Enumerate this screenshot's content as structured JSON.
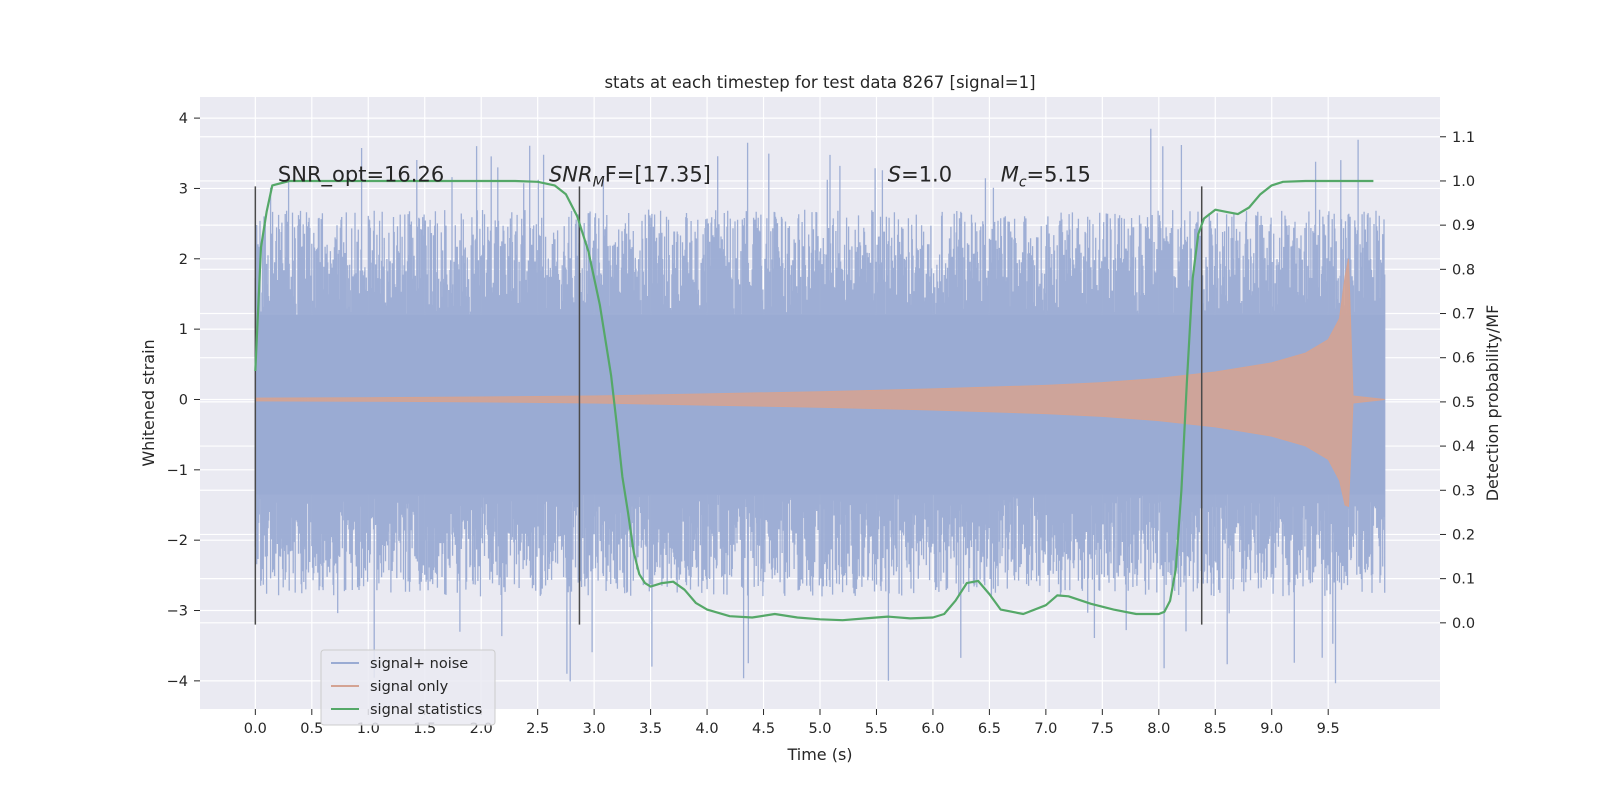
{
  "chart_data": {
    "type": "line",
    "title": "stats at each timestep for test data 8267 [signal=1]",
    "xlabel": "Time (s)",
    "ylabel_left": "Whitened strain",
    "ylabel_right": "Detection probability/MF",
    "xlim": [
      -0.49,
      10.49
    ],
    "ylim_left": [
      -4.4,
      4.3
    ],
    "ylim_right": [
      -0.195,
      1.19
    ],
    "x_ticks": [
      0.0,
      0.5,
      1.0,
      1.5,
      2.0,
      2.5,
      3.0,
      3.5,
      4.0,
      4.5,
      5.0,
      5.5,
      6.0,
      6.5,
      7.0,
      7.5,
      8.0,
      8.5,
      9.0,
      9.5
    ],
    "x_tick_labels": [
      "0.0",
      "0.5",
      "1.0",
      "1.5",
      "2.0",
      "2.5",
      "3.0",
      "3.5",
      "4.0",
      "4.5",
      "5.0",
      "5.5",
      "6.0",
      "6.5",
      "7.0",
      "7.5",
      "8.0",
      "8.5",
      "9.0",
      "9.5"
    ],
    "left_ticks": [
      -4,
      -3,
      -2,
      -1,
      0,
      1,
      2,
      3,
      4
    ],
    "left_tick_labels": [
      "−4",
      "−3",
      "−2",
      "−1",
      "0",
      "1",
      "2",
      "3",
      "4"
    ],
    "right_ticks": [
      0.0,
      0.1,
      0.2,
      0.3,
      0.4,
      0.5,
      0.6,
      0.7,
      0.8,
      0.9,
      1.0,
      1.1
    ],
    "right_tick_labels": [
      "0.0",
      "0.1",
      "0.2",
      "0.3",
      "0.4",
      "0.5",
      "0.6",
      "0.7",
      "0.8",
      "0.9",
      "1.0",
      "1.1"
    ],
    "grid": true,
    "legend_position": "lower-left",
    "series": [
      {
        "name": "signal+ noise",
        "color": "#9aabd3",
        "axis": "left",
        "description_values": {
          "x_range": [
            0.0,
            10.0
          ],
          "typical_band": [
            -1.35,
            1.2
          ],
          "peak_max": 3.87,
          "peak_min": -4.05
        }
      },
      {
        "name": "signal only",
        "color": "#d4a393",
        "axis": "left",
        "envelope": {
          "x": [
            0.0,
            1.0,
            2.0,
            3.0,
            4.0,
            5.0,
            6.0,
            7.0,
            7.5,
            8.0,
            8.5,
            9.0,
            9.3,
            9.5,
            9.6,
            9.65,
            9.68,
            9.72,
            10.0
          ],
          "upper": [
            0.02,
            0.025,
            0.035,
            0.05,
            0.08,
            0.11,
            0.15,
            0.2,
            0.24,
            0.3,
            0.39,
            0.52,
            0.66,
            0.85,
            1.15,
            1.75,
            2.0,
            0.05,
            0.0
          ],
          "lower": [
            -0.02,
            -0.025,
            -0.035,
            -0.05,
            -0.08,
            -0.11,
            -0.15,
            -0.2,
            -0.24,
            -0.3,
            -0.39,
            -0.52,
            -0.66,
            -0.85,
            -1.15,
            -1.5,
            -1.52,
            -0.05,
            0.0
          ]
        }
      },
      {
        "name": "signal statistics",
        "color": "#55a868",
        "axis": "right",
        "x": [
          0.0,
          0.05,
          0.1,
          0.15,
          0.3,
          0.5,
          1.0,
          1.5,
          2.0,
          2.3,
          2.5,
          2.65,
          2.75,
          2.85,
          2.95,
          3.05,
          3.15,
          3.2,
          3.25,
          3.3,
          3.35,
          3.4,
          3.45,
          3.5,
          3.6,
          3.7,
          3.8,
          3.9,
          4.0,
          4.2,
          4.4,
          4.6,
          4.8,
          5.0,
          5.2,
          5.4,
          5.6,
          5.8,
          6.0,
          6.1,
          6.2,
          6.3,
          6.4,
          6.5,
          6.6,
          6.8,
          7.0,
          7.1,
          7.2,
          7.4,
          7.6,
          7.8,
          8.0,
          8.05,
          8.1,
          8.15,
          8.2,
          8.25,
          8.3,
          8.35,
          8.4,
          8.5,
          8.6,
          8.7,
          8.8,
          8.9,
          9.0,
          9.1,
          9.3,
          9.5,
          9.7,
          9.9
        ],
        "values": [
          0.57,
          0.85,
          0.93,
          0.99,
          1.0,
          1.0,
          1.0,
          1.0,
          1.0,
          1.0,
          0.998,
          0.99,
          0.97,
          0.92,
          0.84,
          0.72,
          0.56,
          0.45,
          0.33,
          0.25,
          0.16,
          0.11,
          0.09,
          0.082,
          0.09,
          0.093,
          0.075,
          0.045,
          0.03,
          0.015,
          0.012,
          0.02,
          0.012,
          0.008,
          0.006,
          0.01,
          0.014,
          0.01,
          0.012,
          0.02,
          0.05,
          0.09,
          0.095,
          0.065,
          0.03,
          0.02,
          0.04,
          0.062,
          0.06,
          0.043,
          0.03,
          0.02,
          0.02,
          0.025,
          0.05,
          0.12,
          0.3,
          0.55,
          0.78,
          0.88,
          0.915,
          0.935,
          0.93,
          0.925,
          0.94,
          0.97,
          0.99,
          0.998,
          1.0,
          1.0,
          1.0,
          1.0
        ]
      }
    ],
    "vertical_lines": [
      {
        "x": 0.0,
        "y_range": [
          -3.2,
          3.03
        ]
      },
      {
        "x": 2.87,
        "y_range": [
          -3.2,
          3.03
        ]
      },
      {
        "x": 8.38,
        "y_range": [
          -3.2,
          3.03
        ]
      }
    ],
    "annotations": [
      {
        "x": 0.2,
        "y": 3.1,
        "prefix": "SNR_opt=16.26",
        "italic": "",
        "sub": "",
        "suffix": ""
      },
      {
        "x": 2.6,
        "y": 3.1,
        "prefix": "",
        "italic": "SNR",
        "sub": "M",
        "suffix": "F=[17.35]"
      },
      {
        "x": 5.6,
        "y": 3.1,
        "prefix": "",
        "italic": "S",
        "sub": "",
        "suffix": "=1.0"
      },
      {
        "x": 6.6,
        "y": 3.1,
        "prefix": "",
        "italic": "M",
        "sub": "c",
        "suffix": "=5.15"
      }
    ]
  },
  "colors": {
    "plot_background": "#eaeaf2",
    "grid": "#ffffff",
    "vertical_line": "#4a4a4a"
  }
}
